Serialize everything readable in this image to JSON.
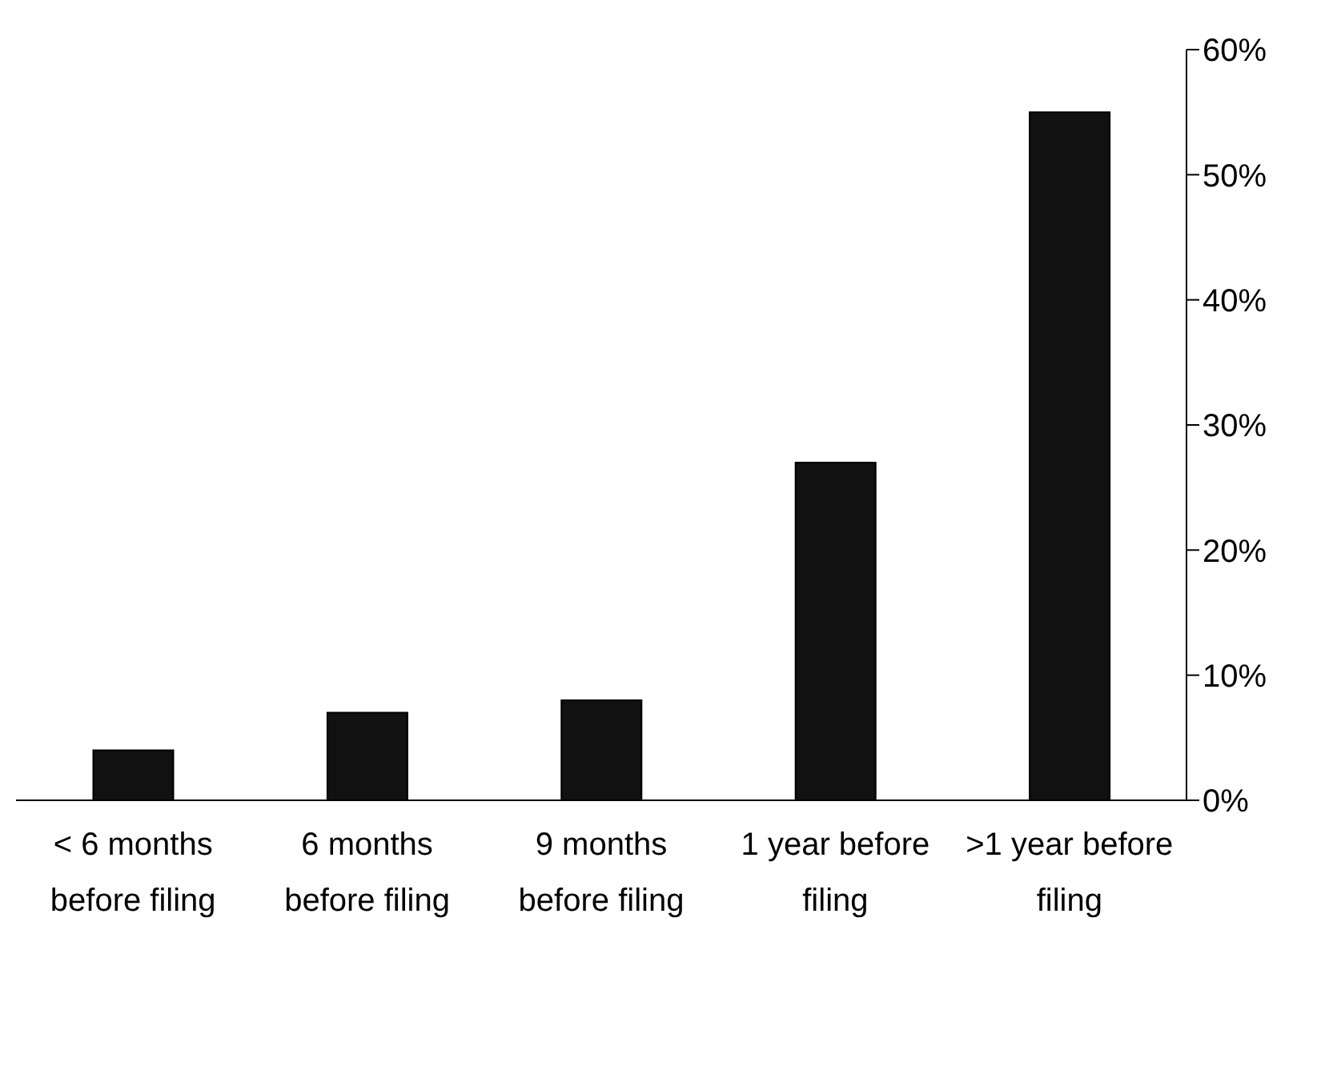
{
  "chart_data": {
    "type": "bar",
    "categories": [
      "< 6 months before filing",
      "6 months before filing",
      "9 months before filing",
      "1 year before filing",
      ">1 year before filing"
    ],
    "values": [
      4,
      7,
      8,
      27,
      55
    ],
    "color": "#111111",
    "ylim": [
      0,
      60
    ],
    "yticks": [
      {
        "value": 0,
        "label": "0%"
      },
      {
        "value": 10,
        "label": "10%"
      },
      {
        "value": 20,
        "label": "20%"
      },
      {
        "value": 30,
        "label": "30%"
      },
      {
        "value": 40,
        "label": "40%"
      },
      {
        "value": 50,
        "label": "50%"
      },
      {
        "value": 60,
        "label": "60%"
      }
    ],
    "grid": false,
    "legend": false
  }
}
